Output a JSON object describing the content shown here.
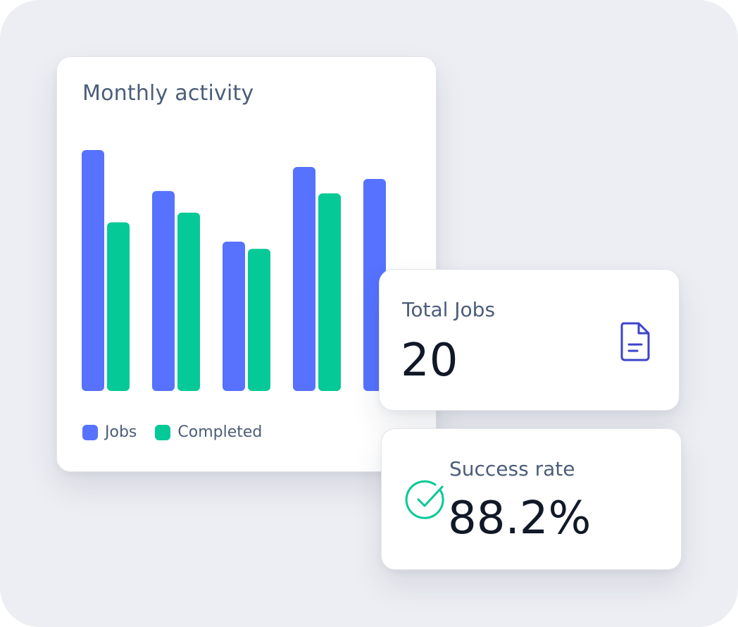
{
  "colors": {
    "jobs": "#5672fe",
    "completed": "#05c996",
    "doc_icon": "#3d43c9",
    "check_icon": "#05c996"
  },
  "activity_card": {
    "title": "Monthly activity"
  },
  "chart_data": {
    "type": "bar",
    "title": "Monthly activity",
    "xlabel": "",
    "ylabel": "",
    "ylim": [
      0,
      100
    ],
    "categories": [
      "",
      "",
      "",
      "",
      ""
    ],
    "series": [
      {
        "name": "Jobs",
        "values": [
          100,
          83,
          62,
          93,
          88
        ]
      },
      {
        "name": "Completed",
        "values": [
          70,
          74,
          59,
          82,
          null
        ]
      }
    ],
    "grid": false,
    "legend_position": "bottom-left"
  },
  "legend": {
    "jobs_label": "Jobs",
    "completed_label": "Completed"
  },
  "total_jobs_card": {
    "label": "Total Jobs",
    "value": "20",
    "icon": "document-icon"
  },
  "success_rate_card": {
    "label": "Success rate",
    "value": "88.2%",
    "icon": "check-circle-icon"
  }
}
